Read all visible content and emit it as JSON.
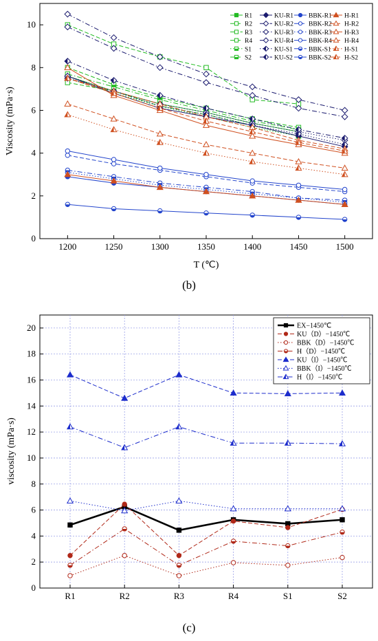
{
  "figure_labels": {
    "b": "(b)",
    "c": "(c)"
  },
  "chart_data": [
    {
      "type": "line",
      "panel": "(b)",
      "xlabel": "T (℃)",
      "ylabel": "Viscosity (mPa·s)",
      "xlim": [
        1170,
        1530
      ],
      "ylim": [
        0,
        11
      ],
      "xticks": [
        1200,
        1250,
        1300,
        1350,
        1400,
        1450,
        1500
      ],
      "yticks": [
        0,
        2,
        4,
        6,
        8,
        10
      ],
      "x": [
        1200,
        1250,
        1300,
        1350,
        1400,
        1450,
        1500
      ],
      "legend_position": "top-right",
      "grid": false,
      "series": [
        {
          "name": "R1",
          "color": "#22bb22",
          "marker": "square-filled",
          "dash": "solid",
          "values": [
            7.6,
            6.9,
            6.3,
            5.9,
            5.4,
            5.0,
            null
          ]
        },
        {
          "name": "R2",
          "color": "#22bb22",
          "marker": "square-open",
          "dash": "dash",
          "values": [
            7.3,
            6.9,
            6.2,
            5.8,
            5.3,
            4.8,
            null
          ]
        },
        {
          "name": "R3",
          "color": "#22bb22",
          "marker": "square-open",
          "dash": "dashdot",
          "values": [
            7.7,
            7.1,
            6.5,
            6.0,
            5.5,
            5.1,
            null
          ]
        },
        {
          "name": "R4",
          "color": "#22bb22",
          "marker": "square-open",
          "dash": "dash",
          "values": [
            10.0,
            9.1,
            8.5,
            8.0,
            6.5,
            6.3,
            null
          ]
        },
        {
          "name": "S1",
          "color": "#22bb22",
          "marker": "square-half",
          "dash": "dot",
          "values": [
            7.5,
            6.8,
            6.2,
            5.7,
            5.2,
            4.8,
            null
          ]
        },
        {
          "name": "S2",
          "color": "#22bb22",
          "marker": "square-half",
          "dash": "dash",
          "values": [
            8.0,
            7.2,
            6.6,
            6.1,
            5.6,
            5.2,
            null
          ]
        },
        {
          "name": "KU-R1",
          "color": "#1a1a6e",
          "marker": "diamond-filled",
          "dash": "solid",
          "values": [
            7.6,
            6.8,
            6.1,
            5.7,
            5.3,
            4.8,
            4.3
          ]
        },
        {
          "name": "KU-R2",
          "color": "#1a1a6e",
          "marker": "diamond-open",
          "dash": "dashdot",
          "values": [
            10.5,
            9.4,
            8.5,
            7.7,
            7.1,
            6.5,
            6.0
          ]
        },
        {
          "name": "KU-R3",
          "color": "#1a1a6e",
          "marker": "diamond-open",
          "dash": "dot",
          "values": [
            7.6,
            6.9,
            6.3,
            5.9,
            5.4,
            5.0,
            4.6
          ]
        },
        {
          "name": "KU-R4",
          "color": "#1a1a6e",
          "marker": "diamond-open",
          "dash": "dashdot",
          "values": [
            9.9,
            8.9,
            8.0,
            7.3,
            6.7,
            6.1,
            5.7
          ]
        },
        {
          "name": "KU-S1",
          "color": "#1a1a6e",
          "marker": "diamond-half",
          "dash": "dot",
          "values": [
            7.5,
            6.9,
            6.2,
            5.8,
            5.3,
            4.9,
            4.4
          ]
        },
        {
          "name": "KU-S2",
          "color": "#1a1a6e",
          "marker": "diamond-half",
          "dash": "dashdot",
          "values": [
            8.3,
            7.4,
            6.7,
            6.1,
            5.6,
            5.1,
            4.7
          ]
        },
        {
          "name": "BBK-R1",
          "color": "#2244cc",
          "marker": "circle-filled",
          "dash": "solid",
          "values": [
            2.9,
            2.6,
            2.4,
            2.2,
            2.0,
            1.8,
            1.6
          ]
        },
        {
          "name": "BBK-R2",
          "color": "#2244cc",
          "marker": "circle-open",
          "dash": "dash",
          "values": [
            3.9,
            3.5,
            3.2,
            2.9,
            2.6,
            2.4,
            2.2
          ]
        },
        {
          "name": "BBK-R3",
          "color": "#2244cc",
          "marker": "circle-open",
          "dash": "dot",
          "values": [
            3.1,
            2.8,
            2.5,
            2.3,
            2.1,
            1.9,
            1.7
          ]
        },
        {
          "name": "BBK-R4",
          "color": "#2244cc",
          "marker": "circle-open",
          "dash": "solid",
          "values": [
            4.1,
            3.7,
            3.3,
            3.0,
            2.7,
            2.5,
            2.3
          ]
        },
        {
          "name": "BBK-S1",
          "color": "#2244cc",
          "marker": "circle-half",
          "dash": "dashdot",
          "values": [
            3.2,
            2.9,
            2.6,
            2.4,
            2.2,
            1.9,
            1.8
          ]
        },
        {
          "name": "BBK-S2",
          "color": "#2244cc",
          "marker": "circle-half",
          "dash": "solid",
          "values": [
            1.6,
            1.4,
            1.3,
            1.2,
            1.1,
            1.0,
            0.9
          ]
        },
        {
          "name": "H-R1",
          "color": "#d05020",
          "marker": "triangle-filled",
          "dash": "solid",
          "values": [
            3.0,
            2.7,
            2.4,
            2.2,
            2.0,
            1.8,
            1.6
          ]
        },
        {
          "name": "H-R2",
          "color": "#d05020",
          "marker": "triangle-open",
          "dash": "dash",
          "values": [
            6.3,
            5.6,
            4.9,
            4.4,
            4.0,
            3.6,
            3.3
          ]
        },
        {
          "name": "H-R3",
          "color": "#d05020",
          "marker": "triangle-open",
          "dash": "solid",
          "values": [
            8.0,
            6.7,
            6.0,
            5.3,
            4.8,
            4.4,
            4.0
          ]
        },
        {
          "name": "H-R4",
          "color": "#d05020",
          "marker": "triangle-open",
          "dash": "dash",
          "values": [
            7.5,
            6.9,
            6.3,
            5.7,
            5.2,
            4.6,
            4.2
          ]
        },
        {
          "name": "H-S1",
          "color": "#d05020",
          "marker": "triangle-half",
          "dash": "dot",
          "values": [
            5.8,
            5.1,
            4.5,
            4.0,
            3.6,
            3.3,
            3.0
          ]
        },
        {
          "name": "H-S2",
          "color": "#d05020",
          "marker": "triangle-half",
          "dash": "dash",
          "values": [
            7.5,
            6.8,
            6.1,
            5.5,
            5.0,
            4.5,
            4.1
          ]
        }
      ]
    },
    {
      "type": "line",
      "panel": "(c)",
      "xlabel": "",
      "ylabel": "viscosity (mPa·s)",
      "categories": [
        "R1",
        "R2",
        "R3",
        "R4",
        "S1",
        "S2"
      ],
      "ylim": [
        0,
        21
      ],
      "yticks": [
        0,
        2,
        4,
        6,
        8,
        10,
        12,
        14,
        16,
        18,
        20
      ],
      "grid": true,
      "legend_position": "top-right",
      "series": [
        {
          "name": "EX−1450℃",
          "color": "#000000",
          "marker": "square-filled",
          "dash": "solid",
          "width": 2.6,
          "values": [
            4.85,
            6.25,
            4.45,
            5.25,
            4.95,
            5.25
          ]
        },
        {
          "name": "KU（D）−1450℃",
          "color": "#b02818",
          "marker": "circle-filled",
          "dash": "dash",
          "width": 1,
          "values": [
            2.5,
            6.45,
            2.5,
            5.15,
            4.65,
            6.05
          ]
        },
        {
          "name": "BBK（D）−1450℃",
          "color": "#b02818",
          "marker": "circle-open",
          "dash": "dot",
          "width": 1,
          "values": [
            0.95,
            2.5,
            0.95,
            1.95,
            1.75,
            2.35
          ]
        },
        {
          "name": "H（D）−1450℃",
          "color": "#b02818",
          "marker": "circle-half",
          "dash": "dashdot",
          "width": 1,
          "values": [
            1.75,
            4.55,
            1.75,
            3.6,
            3.25,
            4.3
          ]
        },
        {
          "name": "KU（I）−1450℃",
          "color": "#1c2ccc",
          "marker": "triangle-filled",
          "dash": "dash",
          "width": 1,
          "values": [
            16.4,
            14.6,
            16.4,
            15.0,
            14.95,
            15.0
          ]
        },
        {
          "name": "BBK（I）−1450℃",
          "color": "#1c2ccc",
          "marker": "triangle-open",
          "dash": "dot",
          "width": 1,
          "values": [
            6.7,
            5.95,
            6.7,
            6.1,
            6.1,
            6.1
          ]
        },
        {
          "name": "H（I）−1450℃",
          "color": "#1c2ccc",
          "marker": "triangle-half",
          "dash": "dashdot",
          "width": 1,
          "values": [
            12.4,
            10.8,
            12.4,
            11.15,
            11.15,
            11.1
          ]
        }
      ]
    }
  ]
}
